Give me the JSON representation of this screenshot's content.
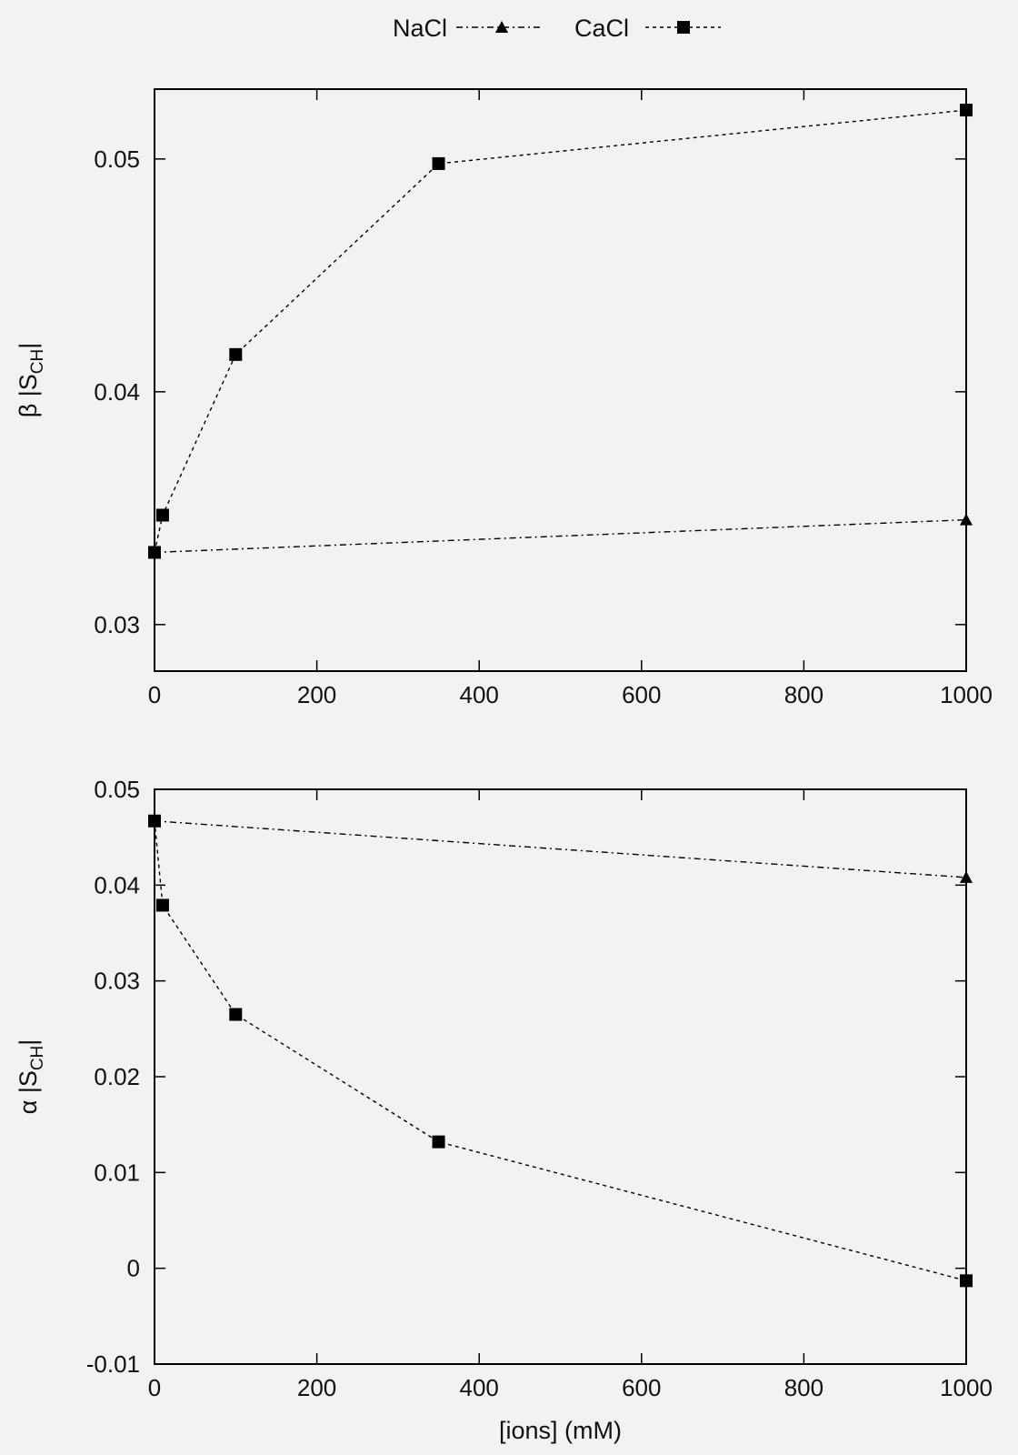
{
  "legend": {
    "placement": "top-center",
    "entries": [
      {
        "name": "NaCl",
        "marker": "triangle"
      },
      {
        "name": "CaCl",
        "marker": "square"
      }
    ]
  },
  "chart_data": [
    {
      "type": "line",
      "ylabel_symbol": "β",
      "ylabel_text": "|S",
      "ylabel_sub": "CH",
      "ylabel_end": "|",
      "xlabel": "",
      "xlim": [
        0,
        1000
      ],
      "ylim": [
        0.028,
        0.053
      ],
      "xticks": [
        "0",
        "200",
        "400",
        "600",
        "800",
        "1000"
      ],
      "xtick_values": [
        0,
        200,
        400,
        600,
        800,
        1000
      ],
      "yticks": [
        "0.03",
        "0.04",
        "0.05"
      ],
      "ytick_values": [
        0.03,
        0.04,
        0.05
      ],
      "series": [
        {
          "name": "NaCl",
          "marker": "triangle",
          "line": "dash-dot",
          "x": [
            0,
            1000
          ],
          "y": [
            0.0331,
            0.0345
          ]
        },
        {
          "name": "CaCl",
          "marker": "square",
          "line": "dashed",
          "x": [
            0,
            10,
            100,
            350,
            1000
          ],
          "y": [
            0.0331,
            0.0347,
            0.0416,
            0.0498,
            0.0521
          ]
        }
      ]
    },
    {
      "type": "line",
      "ylabel_symbol": "α",
      "ylabel_text": "|S",
      "ylabel_sub": "CH",
      "ylabel_end": "|",
      "xlabel": "[ions] (mM)",
      "xlim": [
        0,
        1000
      ],
      "ylim": [
        -0.01,
        0.05
      ],
      "xticks": [
        "0",
        "200",
        "400",
        "600",
        "800",
        "1000"
      ],
      "xtick_values": [
        0,
        200,
        400,
        600,
        800,
        1000
      ],
      "yticks": [
        "-0.01",
        "0",
        "0.01",
        "0.02",
        "0.03",
        "0.04",
        "0.05"
      ],
      "ytick_values": [
        -0.01,
        0,
        0.01,
        0.02,
        0.03,
        0.04,
        0.05
      ],
      "series": [
        {
          "name": "NaCl",
          "marker": "triangle",
          "line": "dash-dot",
          "x": [
            0,
            1000
          ],
          "y": [
            0.0467,
            0.0408
          ]
        },
        {
          "name": "CaCl",
          "marker": "square",
          "line": "dashed",
          "x": [
            0,
            10,
            100,
            350,
            1000
          ],
          "y": [
            0.0467,
            0.0379,
            0.0265,
            0.0132,
            -0.0013
          ]
        }
      ]
    }
  ]
}
